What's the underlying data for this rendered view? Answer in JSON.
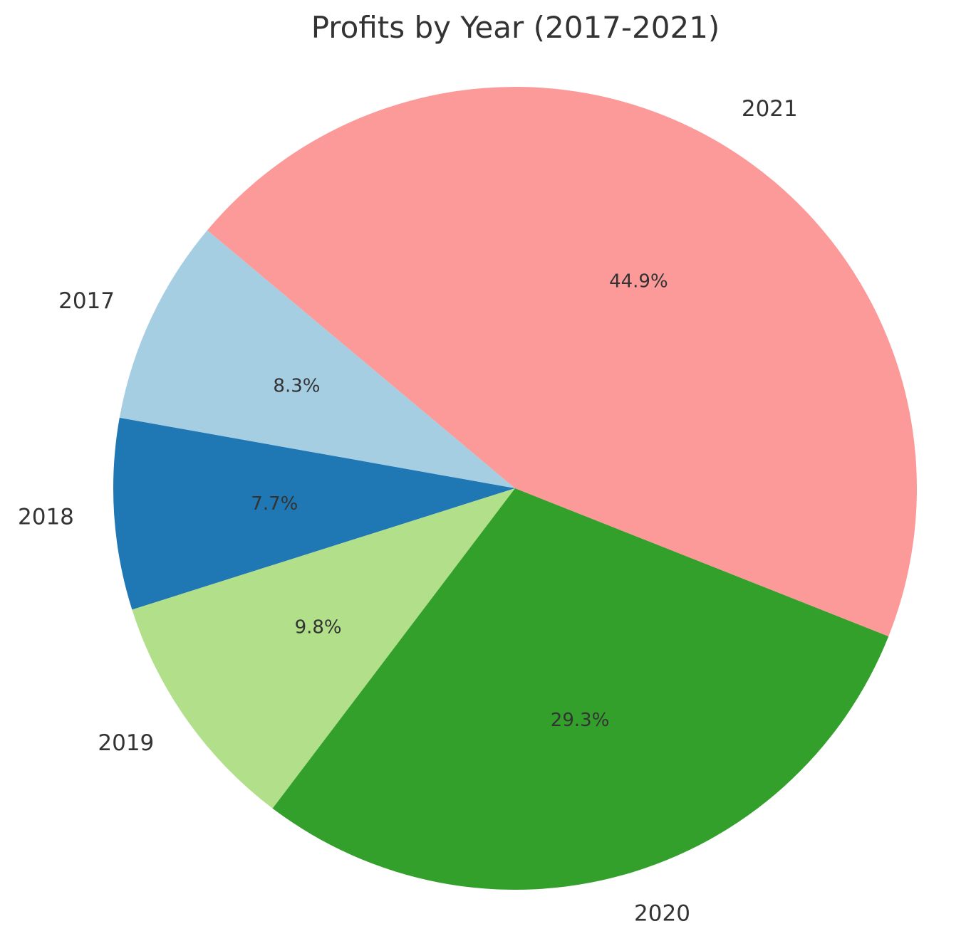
{
  "chart_data": {
    "type": "pie",
    "title": "Profits by Year (2017-2021)",
    "start_angle_deg": 140,
    "counterclock": true,
    "slices": [
      {
        "label": "2017",
        "percent": 8.3,
        "pct_label": "8.3%",
        "color": "#a6cee3"
      },
      {
        "label": "2018",
        "percent": 7.7,
        "pct_label": "7.7%",
        "color": "#1f78b4"
      },
      {
        "label": "2019",
        "percent": 9.8,
        "pct_label": "9.8%",
        "color": "#b2df8a"
      },
      {
        "label": "2020",
        "percent": 29.3,
        "pct_label": "29.3%",
        "color": "#33a02c"
      },
      {
        "label": "2021",
        "percent": 44.9,
        "pct_label": "44.9%",
        "color": "#fb9a99"
      }
    ]
  }
}
